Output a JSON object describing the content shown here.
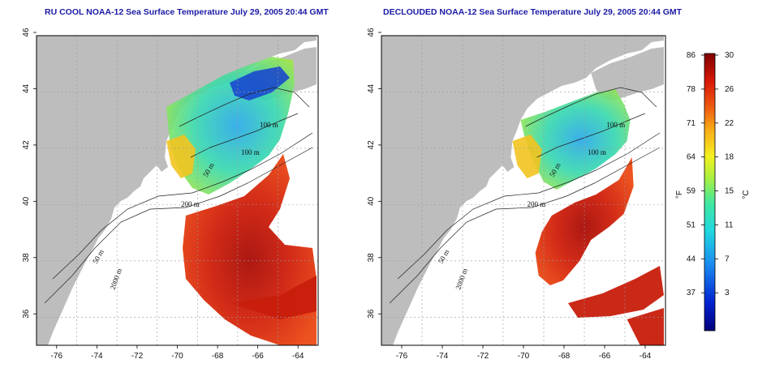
{
  "panels": [
    {
      "id": "ru-cool",
      "title": "RU COOL NOAA-12 Sea Surface Temperature July 29, 2005 20:44 GMT",
      "x_ticks": [
        "-76",
        "-74",
        "-72",
        "-70",
        "-68",
        "-66",
        "-64"
      ],
      "y_ticks": [
        "36",
        "38",
        "40",
        "42",
        "44",
        "46"
      ],
      "contour_labels": [
        "100 m",
        "100 m",
        "50 m",
        "200 m",
        "50 m",
        "2000 m"
      ]
    },
    {
      "id": "declouded",
      "title": "DECLOUDED NOAA-12 Sea Surface Temperature July 29, 2005 20:44 GMT",
      "x_ticks": [
        "-76",
        "-74",
        "-72",
        "-70",
        "-68",
        "-66",
        "-64"
      ],
      "y_ticks": [
        "36",
        "38",
        "40",
        "42",
        "44",
        "46"
      ],
      "contour_labels": [
        "100 m",
        "100 m",
        "50 m",
        "200 m",
        "50 m",
        "2000 m"
      ]
    }
  ],
  "colorbar": {
    "fahrenheit_ticks": [
      "86",
      "78",
      "71",
      "64",
      "59",
      "51",
      "44",
      "37"
    ],
    "celsius_ticks": [
      "30",
      "26",
      "22",
      "18",
      "15",
      "11",
      "7",
      "3"
    ],
    "fahrenheit_label": "°F",
    "celsius_label": "°C"
  },
  "colors": {
    "land": "#bdbdbd",
    "ocean_nodata": "#ffffff",
    "title": "#1a1aa6",
    "warm": "#c81e0c",
    "mid": "#e9e41c",
    "cool": "#26c6d8",
    "cold": "#1640d0"
  }
}
